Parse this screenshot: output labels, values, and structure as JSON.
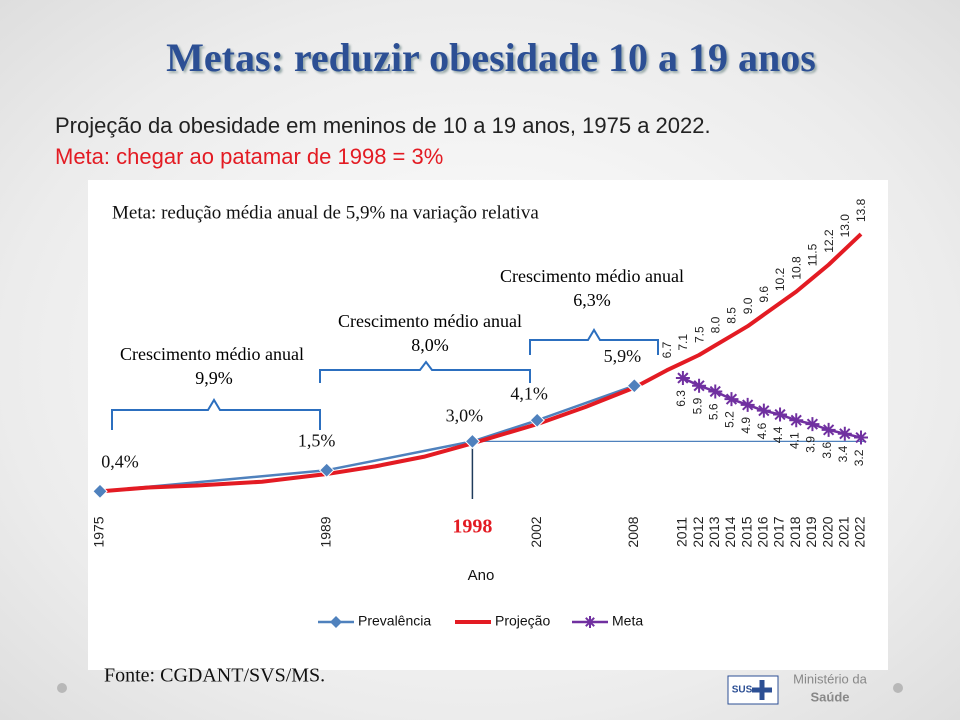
{
  "slide": {
    "title": "Metas: reduzir obesidade 10 a 19 anos",
    "subtitle": "Projeção da obesidade em meninos de 10 a 19 anos, 1975 a 2022.",
    "goal": "Meta: chegar ao patamar de 1998 = 3%",
    "source": "Fonte: CGDANT/SVS/MS.",
    "logo": {
      "sus": "SUS",
      "ministry_line1": "Ministério da",
      "ministry_line2": "Saúde"
    }
  },
  "chart_data": {
    "type": "line",
    "xlabel": "Ano",
    "xlim": [
      1975,
      2022
    ],
    "xticks": [
      1975,
      1989,
      1998,
      2002,
      2008,
      2011,
      2012,
      2013,
      2014,
      2015,
      2016,
      2017,
      2018,
      2019,
      2020,
      2021,
      2022
    ],
    "ylim": [
      0,
      15
    ],
    "highlight_x": 1998,
    "annotations": [
      {
        "text": "Meta: redução média anual de 5,9% na variação relativa"
      },
      {
        "text": "Crescimento médio anual",
        "value": "9,9%"
      },
      {
        "text": "Crescimento médio anual",
        "value": "8,0%"
      },
      {
        "text": "Crescimento médio anual",
        "value": "6,3%"
      }
    ],
    "series": [
      {
        "name": "Prevalência",
        "color": "#4f81bd",
        "marker": "diamond",
        "x": [
          1975,
          1989,
          1998,
          2002,
          2008
        ],
        "values": [
          0.4,
          1.5,
          3.0,
          4.1,
          5.9
        ],
        "value_labels": [
          "0,4%",
          "1,5%",
          "3,0%",
          "4,1%",
          "5,9%"
        ]
      },
      {
        "name": "Projeção",
        "color": "#e31b23",
        "marker": "none",
        "x": [
          1975,
          1978,
          1981,
          1985,
          1989,
          1992,
          1995,
          1998,
          2002,
          2005,
          2008,
          2010,
          2011,
          2012,
          2013,
          2014,
          2015,
          2016,
          2017,
          2018,
          2019,
          2020,
          2021,
          2022
        ],
        "values": [
          0.4,
          0.6,
          0.7,
          0.9,
          1.3,
          1.7,
          2.2,
          2.9,
          3.9,
          4.8,
          5.8,
          6.7,
          7.1,
          7.5,
          8.0,
          8.5,
          9.0,
          9.6,
          10.2,
          10.8,
          11.5,
          12.2,
          13.0,
          13.8
        ],
        "value_labels": [
          null,
          null,
          null,
          null,
          null,
          null,
          null,
          null,
          null,
          null,
          null,
          "6.7",
          "7.1",
          "7.5",
          "8.0",
          "8.5",
          "9.0",
          "9.6",
          "10.2",
          "10.8",
          "11.5",
          "12.2",
          "13.0",
          "13.8"
        ]
      },
      {
        "name": "Meta",
        "color": "#7030a0",
        "marker": "star",
        "x": [
          2011,
          2012,
          2013,
          2014,
          2015,
          2016,
          2017,
          2018,
          2019,
          2020,
          2021,
          2022
        ],
        "values": [
          6.3,
          5.9,
          5.6,
          5.2,
          4.9,
          4.6,
          4.4,
          4.1,
          3.9,
          3.6,
          3.4,
          3.2
        ],
        "value_labels": [
          "6.3",
          "5.9",
          "5.6",
          "5.2",
          "4.9",
          "4.6",
          "4.4",
          "4.1",
          "3.9",
          "3.6",
          "3.4",
          "3.2"
        ]
      }
    ]
  }
}
